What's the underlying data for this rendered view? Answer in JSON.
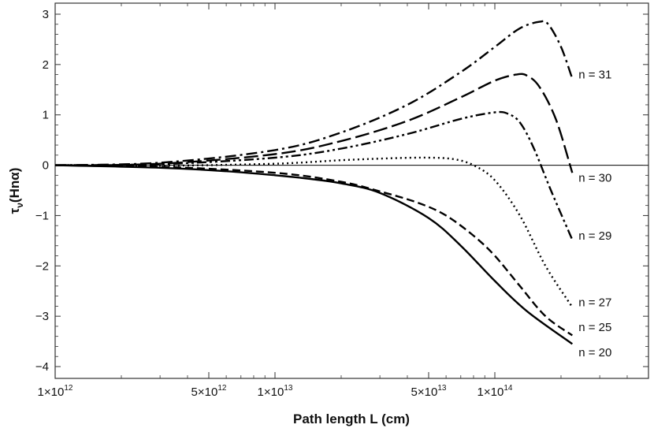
{
  "chart_data": {
    "type": "line",
    "title": "",
    "xlabel": "Path length L (cm)",
    "ylabel": "τ",
    "ylabel_sub": "ν",
    "ylabel_tail": "(Hnα)",
    "xscale": "log",
    "xlim": [
      1000000000000.0,
      400000000000000.0
    ],
    "ylim": [
      -4.2,
      3.2
    ],
    "xticks": [
      {
        "value": 1000000000000.0,
        "mant": "1×10",
        "exp": "12"
      },
      {
        "value": 5000000000000.0,
        "mant": "5×10",
        "exp": "12"
      },
      {
        "value": 10000000000000.0,
        "mant": "1×10",
        "exp": "13"
      },
      {
        "value": 50000000000000.0,
        "mant": "5×10",
        "exp": "13"
      },
      {
        "value": 100000000000000.0,
        "mant": "1×10",
        "exp": "14"
      }
    ],
    "yticks": [
      3,
      2,
      1,
      0,
      -1,
      -2,
      -3,
      -4
    ],
    "ytick_labels": [
      "3",
      "2",
      "1",
      "0",
      "−1",
      "−2",
      "−3",
      "−4"
    ],
    "series": [
      {
        "name": "n = 31",
        "dash": "14,5,3,5",
        "x": [
          1000000000000.0,
          3000000000000.0,
          10000000000000.0,
          20000000000000.0,
          40000000000000.0,
          70000000000000.0,
          100000000000000.0,
          130000000000000.0,
          160000000000000.0,
          175000000000000.0,
          200000000000000.0,
          225000000000000.0
        ],
        "y": [
          0,
          0.05,
          0.3,
          0.65,
          1.2,
          1.85,
          2.35,
          2.72,
          2.85,
          2.8,
          2.35,
          1.72
        ]
      },
      {
        "name": "n = 30",
        "dash": "18,6",
        "x": [
          1000000000000.0,
          3000000000000.0,
          10000000000000.0,
          20000000000000.0,
          40000000000000.0,
          70000000000000.0,
          100000000000000.0,
          125000000000000.0,
          140000000000000.0,
          160000000000000.0,
          190000000000000.0,
          225000000000000.0
        ],
        "y": [
          0,
          0.03,
          0.22,
          0.48,
          0.88,
          1.35,
          1.68,
          1.8,
          1.78,
          1.55,
          0.9,
          -0.15
        ]
      },
      {
        "name": "n = 29",
        "dash": "12,4,3,4,3,4",
        "x": [
          1000000000000.0,
          3000000000000.0,
          10000000000000.0,
          20000000000000.0,
          40000000000000.0,
          70000000000000.0,
          100000000000000.0,
          115000000000000.0,
          130000000000000.0,
          150000000000000.0,
          180000000000000.0,
          225000000000000.0
        ],
        "y": [
          0,
          0.02,
          0.15,
          0.33,
          0.62,
          0.92,
          1.05,
          1.02,
          0.85,
          0.35,
          -0.5,
          -1.48
        ]
      },
      {
        "name": "n = 27",
        "dash": "2,4",
        "x": [
          1000000000000.0,
          3000000000000.0,
          10000000000000.0,
          20000000000000.0,
          35000000000000.0,
          50000000000000.0,
          65000000000000.0,
          80000000000000.0,
          100000000000000.0,
          130000000000000.0,
          170000000000000.0,
          225000000000000.0
        ],
        "y": [
          0,
          -0.01,
          0.03,
          0.1,
          0.14,
          0.15,
          0.12,
          0.0,
          -0.3,
          -1.0,
          -2.0,
          -2.82
        ]
      },
      {
        "name": "n = 25",
        "dash": "10,5",
        "x": [
          1000000000000.0,
          3000000000000.0,
          10000000000000.0,
          20000000000000.0,
          30000000000000.0,
          45000000000000.0,
          60000000000000.0,
          80000000000000.0,
          100000000000000.0,
          130000000000000.0,
          170000000000000.0,
          225000000000000.0
        ],
        "y": [
          0,
          -0.03,
          -0.15,
          -0.33,
          -0.52,
          -0.75,
          -1.0,
          -1.4,
          -1.8,
          -2.4,
          -3.0,
          -3.38
        ]
      },
      {
        "name": "n = 20",
        "dash": "",
        "x": [
          1000000000000.0,
          3000000000000.0,
          6000000000000.0,
          10000000000000.0,
          15000000000000.0,
          20000000000000.0,
          30000000000000.0,
          50000000000000.0,
          70000000000000.0,
          100000000000000.0,
          140000000000000.0,
          225000000000000.0
        ],
        "y": [
          0,
          -0.05,
          -0.12,
          -0.2,
          -0.28,
          -0.36,
          -0.55,
          -1.05,
          -1.6,
          -2.3,
          -2.9,
          -3.55
        ]
      }
    ],
    "series_label_values": [
      1.8,
      -0.25,
      -1.4,
      -2.72,
      -3.22,
      -3.72
    ]
  }
}
